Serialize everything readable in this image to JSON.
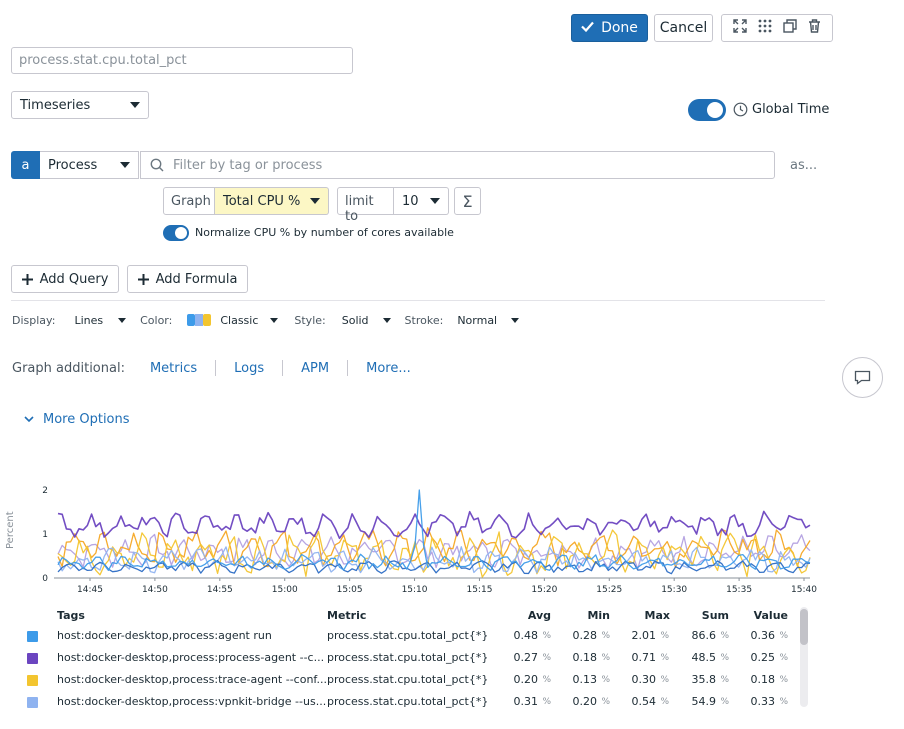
{
  "toolbar": {
    "done_label": "Done",
    "cancel_label": "Cancel"
  },
  "title_input": {
    "value": "process.stat.cpu.total_pct"
  },
  "viz_type": {
    "value": "Timeseries"
  },
  "global_time": {
    "label": "Global Time",
    "enabled": true
  },
  "query": {
    "letter": "a",
    "source": "Process",
    "filter_placeholder": "Filter by tag or process",
    "as_label": "as...",
    "graph_label": "Graph",
    "metric": "Total CPU %",
    "limit_label": "limit to",
    "limit_value": "10",
    "sigma": "Σ",
    "normalize_label": "Normalize CPU % by number of cores available",
    "normalize_enabled": true
  },
  "actions": {
    "add_query": "Add Query",
    "add_formula": "Add Formula"
  },
  "display_opts": {
    "display_label": "Display:",
    "display_value": "Lines",
    "color_label": "Color:",
    "color_value": "Classic",
    "style_label": "Style:",
    "style_value": "Solid",
    "stroke_label": "Stroke:",
    "stroke_value": "Normal"
  },
  "graph_additional": {
    "label": "Graph additional:",
    "links": [
      "Metrics",
      "Logs",
      "APM",
      "More..."
    ]
  },
  "more_options": {
    "label": "More Options"
  },
  "colors": {
    "accent": "#1f6eb5",
    "done_bg": "#1f6eb5",
    "series_blue": "#3d9be9",
    "series_purple": "#6b45c0",
    "series_yellow": "#f3c52f",
    "series_lightblue": "#8fb3f0",
    "series_orange": "#f5a623"
  },
  "chart_data": {
    "type": "line",
    "ylabel": "Percent",
    "yticks": [
      "0",
      "1",
      "2"
    ],
    "ylim": [
      0,
      2
    ],
    "xticks": [
      "14:45",
      "14:50",
      "14:55",
      "15:00",
      "15:05",
      "15:10",
      "15:15",
      "15:20",
      "15:25",
      "15:30",
      "15:35",
      "15:40"
    ],
    "series": [
      {
        "name": "host:docker-desktop,process:agent run",
        "color": "#3d9be9",
        "base": 0.36,
        "amp": 0.12,
        "spike": 2.01
      },
      {
        "name": "host:docker-desktop,process:process-agent --c...",
        "color": "#6b45c0",
        "base": 1.2,
        "amp": 0.2
      },
      {
        "name": "host:docker-desktop,process:trace-agent --conf...",
        "color": "#f3c52f",
        "base": 0.55,
        "amp": 0.35
      },
      {
        "name": "host:docker-desktop,process:vpnkit-bridge --us...",
        "color": "#8fb3f0",
        "base": 0.4,
        "amp": 0.2
      },
      {
        "name": "",
        "color": "#f5a623",
        "base": 0.7,
        "amp": 0.3
      },
      {
        "name": "",
        "color": "#2b6cc4",
        "base": 0.25,
        "amp": 0.1
      },
      {
        "name": "",
        "color": "#b3a0e0",
        "base": 0.6,
        "amp": 0.25
      }
    ]
  },
  "legend": {
    "headers": {
      "tags": "Tags",
      "metric": "Metric",
      "avg": "Avg",
      "min": "Min",
      "max": "Max",
      "sum": "Sum",
      "value": "Value"
    },
    "unit": "%",
    "rows": [
      {
        "color": "#3d9be9",
        "tags": "host:docker-desktop,process:agent run",
        "metric": "process.stat.cpu.total_pct{*}",
        "avg": "0.48",
        "min": "0.28",
        "max": "2.01",
        "sum": "86.6",
        "value": "0.36"
      },
      {
        "color": "#6b45c0",
        "tags": "host:docker-desktop,process:process-agent --c...",
        "metric": "process.stat.cpu.total_pct{*}",
        "avg": "0.27",
        "min": "0.18",
        "max": "0.71",
        "sum": "48.5",
        "value": "0.25"
      },
      {
        "color": "#f3c52f",
        "tags": "host:docker-desktop,process:trace-agent --conf...",
        "metric": "process.stat.cpu.total_pct{*}",
        "avg": "0.20",
        "min": "0.13",
        "max": "0.30",
        "sum": "35.8",
        "value": "0.18"
      },
      {
        "color": "#8fb3f0",
        "tags": "host:docker-desktop,process:vpnkit-bridge --us...",
        "metric": "process.stat.cpu.total_pct{*}",
        "avg": "0.31",
        "min": "0.20",
        "max": "0.54",
        "sum": "54.9",
        "value": "0.33"
      }
    ]
  }
}
